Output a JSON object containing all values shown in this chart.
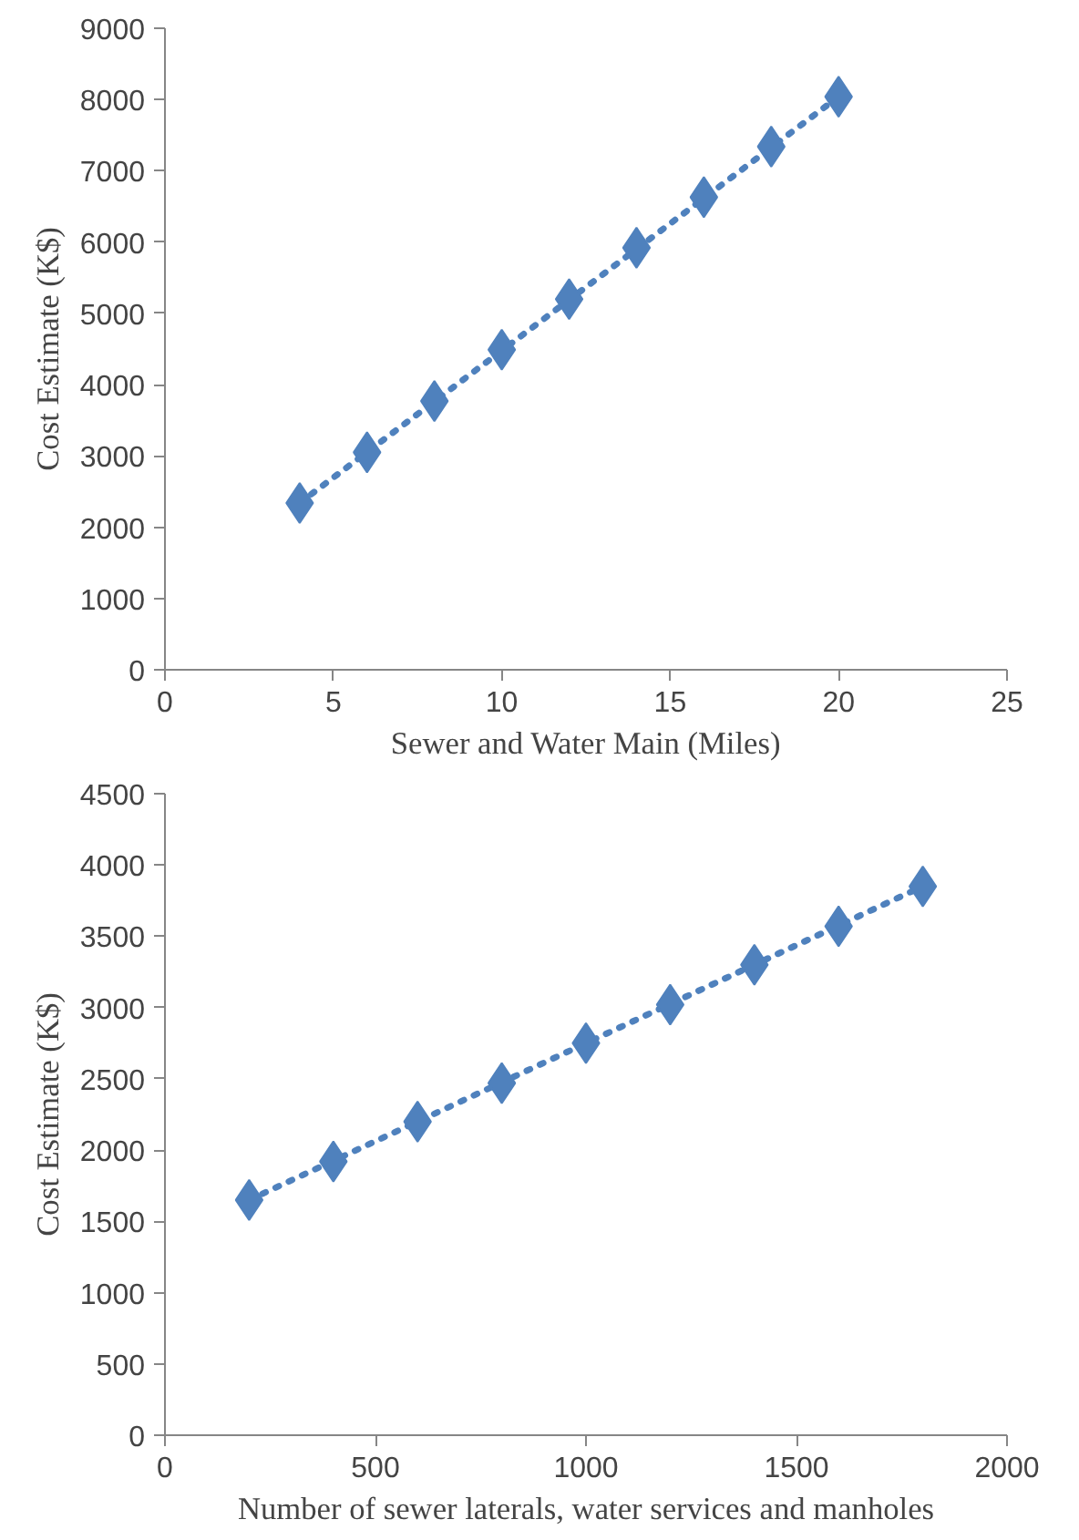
{
  "chart_data": [
    {
      "type": "scatter",
      "xlabel": "Sewer and Water Main (Miles)",
      "ylabel": "Cost Estimate (K$)",
      "x": [
        4,
        6,
        8,
        10,
        12,
        14,
        16,
        18,
        20
      ],
      "marker": "diamond",
      "grid": false,
      "xlim": [
        0,
        25
      ],
      "xticks": [
        0,
        5,
        10,
        15,
        20,
        25
      ],
      "ylim": [
        0,
        9000
      ],
      "yticks": [
        0,
        1000,
        2000,
        3000,
        4000,
        5000,
        6000,
        7000,
        8000,
        9000
      ],
      "series": [
        {
          "color": "#4f81bd",
          "values": [
            2340,
            3050,
            3770,
            4490,
            5200,
            5920,
            6630,
            7340,
            8040
          ]
        },
        {
          "type": "line",
          "color": "#4f81bd",
          "line_style": "dotted",
          "marker": "none",
          "x": [
            4,
            20
          ],
          "values": [
            2340,
            8040
          ]
        }
      ]
    },
    {
      "type": "scatter",
      "xlabel": "Number of sewer laterals, water services and manholes",
      "ylabel": "Cost Estimate (K$)",
      "x": [
        200,
        400,
        600,
        800,
        1000,
        1200,
        1400,
        1600,
        1800
      ],
      "marker": "diamond",
      "grid": false,
      "xlim": [
        0,
        2000
      ],
      "xticks": [
        0,
        500,
        1000,
        1500,
        2000
      ],
      "ylim": [
        0,
        4500
      ],
      "yticks": [
        0,
        500,
        1000,
        1500,
        2000,
        2500,
        3000,
        3500,
        4000,
        4500
      ],
      "series": [
        {
          "color": "#4f81bd",
          "values": [
            1650,
            1920,
            2200,
            2470,
            2750,
            3020,
            3300,
            3570,
            3850
          ]
        },
        {
          "type": "line",
          "color": "#4f81bd",
          "line_style": "dotted",
          "marker": "none",
          "x": [
            200,
            1800
          ],
          "values": [
            1650,
            3850
          ]
        }
      ]
    }
  ]
}
